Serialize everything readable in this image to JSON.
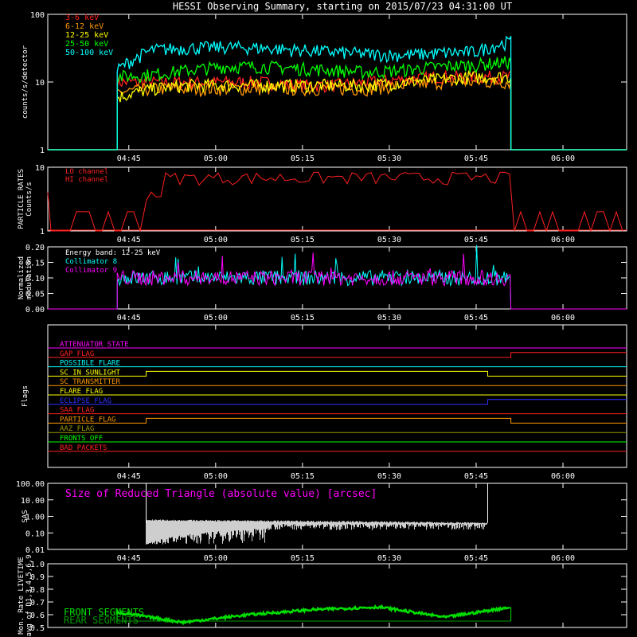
{
  "title": "HESSI Observing Summary, starting on 2015/07/23 04:31:00 UT",
  "time_ticks": [
    "04:45",
    "05:00",
    "05:15",
    "05:30",
    "05:45",
    "06:00"
  ],
  "chart_data": [
    {
      "type": "line",
      "ylabel": "counts/s/detector",
      "scale": "log",
      "ylim": [
        1,
        100
      ],
      "y_ticks": [
        "1",
        "10",
        "100"
      ],
      "legend_position": "top-left",
      "series": [
        {
          "name": "3-6 keV",
          "color": "#ff2020",
          "start": "04:43",
          "end": "05:51",
          "levels": [
            10,
            10,
            10,
            10,
            10,
            9,
            9,
            10,
            11,
            12,
            12,
            12
          ]
        },
        {
          "name": "6-12 keV",
          "color": "#ff9900",
          "start": "04:43",
          "end": "05:51",
          "levels": [
            7,
            8,
            8,
            8,
            8,
            8,
            8,
            8,
            9,
            10,
            10,
            10
          ]
        },
        {
          "name": "12-25 keV",
          "color": "#ffff00",
          "start": "04:43",
          "end": "05:51",
          "levels": [
            6,
            8,
            9,
            9,
            9,
            9,
            9,
            9,
            10,
            11,
            12,
            12
          ]
        },
        {
          "name": "25-50 keV",
          "color": "#00ff00",
          "start": "04:43",
          "end": "05:51",
          "levels": [
            12,
            13,
            15,
            17,
            17,
            16,
            15,
            14,
            15,
            17,
            18,
            20
          ]
        },
        {
          "name": "50-100 keV",
          "color": "#00ffff",
          "start": "04:43",
          "end": "05:51",
          "levels": [
            15,
            30,
            32,
            33,
            32,
            30,
            28,
            26,
            25,
            27,
            28,
            40
          ]
        }
      ]
    },
    {
      "type": "line",
      "ylabel": "PARTICLE RATES Counts/s",
      "scale": "log",
      "ylim": [
        1,
        10
      ],
      "y_ticks": [
        "1",
        "10"
      ],
      "series": [
        {
          "name": "LO channel",
          "color": "#ff2020",
          "levels": [
            1,
            1,
            1,
            1,
            1,
            1,
            1
          ]
        },
        {
          "name": "HI channel",
          "color": "#ff2020",
          "levels": [
            1,
            4,
            7,
            7,
            7,
            7,
            1
          ]
        }
      ]
    },
    {
      "type": "line",
      "ylabel": "Normalized modulation",
      "ylim": [
        0,
        0.2
      ],
      "y_ticks": [
        "0.00",
        "0.05",
        "0.10",
        "0.15",
        "0.20"
      ],
      "annotation": "Energy band: 12-25 keV",
      "series": [
        {
          "name": "Collimator 8",
          "color": "#00ffff",
          "mean": 0.1
        },
        {
          "name": "Collimator 9",
          "color": "#ff00ff",
          "mean": 0.1
        }
      ]
    },
    {
      "type": "line",
      "ylabel": "Flags",
      "flags": [
        {
          "name": "ATTENUATOR STATE",
          "color": "#ff00ff",
          "transitions": []
        },
        {
          "name": "GAP FLAG",
          "color": "#ff2020",
          "transitions": [
            [
              "05:51",
              1
            ]
          ]
        },
        {
          "name": "POSSIBLE FLARE",
          "color": "#00ffff",
          "transitions": []
        },
        {
          "name": "SC IN SUNLIGHT",
          "color": "#ffff00",
          "transitions": [
            [
              "04:48",
              1
            ],
            [
              "05:47",
              0
            ]
          ]
        },
        {
          "name": "SC TRANSMITTER",
          "color": "#ff9900",
          "transitions": []
        },
        {
          "name": "FLARE FLAG",
          "color": "#ffff00",
          "transitions": []
        },
        {
          "name": "ECLIPSE FLAG",
          "color": "#3030ff",
          "transitions": [
            [
              "04:48",
              0
            ],
            [
              "05:47",
              1
            ]
          ]
        },
        {
          "name": "SAA FLAG",
          "color": "#ff2020",
          "transitions": []
        },
        {
          "name": "PARTICLE FLAG",
          "color": "#ff9900",
          "transitions": [
            [
              "04:48",
              1
            ],
            [
              "05:51",
              0
            ]
          ]
        },
        {
          "name": "AAZ FLAG",
          "color": "#999900",
          "transitions": []
        },
        {
          "name": "FRONTS OFF",
          "color": "#00ff00",
          "transitions": []
        },
        {
          "name": "BAD PACKETS",
          "color": "#ff2020",
          "transitions": []
        }
      ]
    },
    {
      "type": "line",
      "ylabel": "SAS",
      "scale": "log",
      "ylim": [
        0.01,
        100
      ],
      "y_ticks": [
        "0.01",
        "0.10",
        "1.00",
        "10.00",
        "100.00"
      ],
      "annotation": "Size of Reduced Triangle (absolute value) [arcsec]",
      "series": [
        {
          "name": "",
          "color": "#ffffff",
          "start": "04:48",
          "end": "05:47"
        }
      ]
    },
    {
      "type": "line",
      "ylabel": "Mon. Rate LIVETIME avg of D1,3,4,5,6,9",
      "ylim": [
        0.5,
        1.0
      ],
      "y_ticks": [
        "0.5",
        "0.6",
        "0.7",
        "0.8",
        "0.9",
        "1.0"
      ],
      "series": [
        {
          "name": "FRONT SEGMENTS",
          "color": "#00dd00",
          "levels": [
            0.62,
            0.54,
            0.6,
            0.64,
            0.66,
            0.58,
            0.66
          ]
        },
        {
          "name": "REAR SEGMENTS",
          "color": "#009900",
          "levels": [
            0.55,
            0.55,
            0.55,
            0.55,
            0.55,
            0.55,
            0.55
          ]
        }
      ]
    }
  ]
}
